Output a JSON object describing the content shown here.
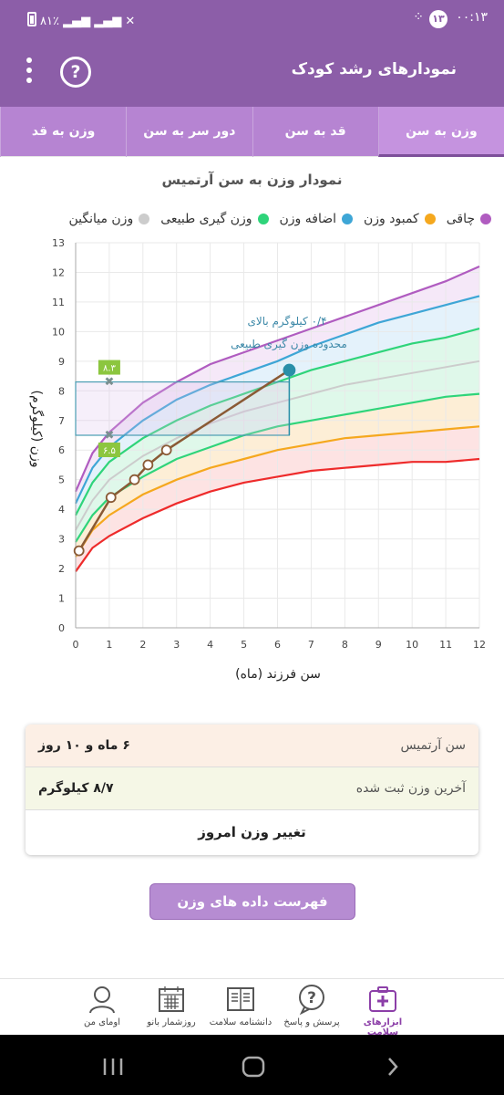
{
  "status_bar": {
    "time": "۰۰:۱۳",
    "notification_count": "۱۳",
    "battery": "۸۱٪"
  },
  "header": {
    "title": "نمودارهای رشد کودک"
  },
  "tabs": [
    {
      "label": "وزن به سن",
      "active": true
    },
    {
      "label": "قد به سن",
      "active": false
    },
    {
      "label": "دور سر به سن",
      "active": false
    },
    {
      "label": "وزن به قد",
      "active": false
    }
  ],
  "chart_title": "نمودار وزن به سن آرتمیس",
  "legend": [
    {
      "label": "چاقی",
      "color": "#b05cc0"
    },
    {
      "label": "کمبود وزن",
      "color": "#f5a81e"
    },
    {
      "label": "اضافه وزن",
      "color": "#3ea6d6"
    },
    {
      "label": "وزن گیری طبیعی",
      "color": "#2fd47a"
    },
    {
      "label": "وزن میانگین",
      "color": "#cccccc"
    }
  ],
  "chart_data": {
    "type": "line",
    "xlabel": "سن فرزند (ماه)",
    "ylabel": "وزن (کیلوگرم)",
    "xlim": [
      0,
      12
    ],
    "ylim": [
      0,
      13
    ],
    "x_ticks": [
      0,
      1,
      2,
      3,
      4,
      5,
      6,
      7,
      8,
      9,
      10,
      11,
      12
    ],
    "y_ticks": [
      0,
      1,
      2,
      3,
      4,
      5,
      6,
      7,
      8,
      9,
      10,
      11,
      12,
      13
    ],
    "ref_x": [
      0,
      0.5,
      1,
      2,
      3,
      4,
      5,
      6,
      7,
      8,
      9,
      10,
      11,
      12
    ],
    "reference_curves": [
      {
        "name": "obese",
        "color": "#b05cc0",
        "values": [
          4.6,
          5.9,
          6.6,
          7.6,
          8.3,
          8.9,
          9.3,
          9.7,
          10.1,
          10.5,
          10.9,
          11.3,
          11.7,
          12.2
        ]
      },
      {
        "name": "overweight",
        "color": "#3ea6d6",
        "values": [
          4.2,
          5.4,
          6.1,
          7.0,
          7.7,
          8.2,
          8.6,
          9.0,
          9.5,
          9.9,
          10.3,
          10.6,
          10.9,
          11.2
        ]
      },
      {
        "name": "normal-upper",
        "color": "#2fd47a",
        "values": [
          3.8,
          4.9,
          5.6,
          6.4,
          7.0,
          7.5,
          7.9,
          8.3,
          8.7,
          9.0,
          9.3,
          9.6,
          9.8,
          10.1
        ]
      },
      {
        "name": "average",
        "color": "#cccccc",
        "values": [
          3.3,
          4.3,
          5.0,
          5.8,
          6.4,
          6.9,
          7.3,
          7.6,
          7.9,
          8.2,
          8.4,
          8.6,
          8.8,
          9.0
        ]
      },
      {
        "name": "normal-lower",
        "color": "#2fd47a",
        "values": [
          2.9,
          3.8,
          4.4,
          5.1,
          5.7,
          6.1,
          6.5,
          6.8,
          7.0,
          7.2,
          7.4,
          7.6,
          7.8,
          7.9
        ]
      },
      {
        "name": "underweight",
        "color": "#f5a81e",
        "values": [
          2.4,
          3.3,
          3.8,
          4.5,
          5.0,
          5.4,
          5.7,
          6.0,
          6.2,
          6.4,
          6.5,
          6.6,
          6.7,
          6.8
        ]
      },
      {
        "name": "severe",
        "color": "#ee2b2b",
        "values": [
          1.9,
          2.7,
          3.1,
          3.7,
          4.2,
          4.6,
          4.9,
          5.1,
          5.3,
          5.4,
          5.5,
          5.6,
          5.6,
          5.7
        ]
      }
    ],
    "series": [
      {
        "color": "#8a5a35",
        "x": [
          0.1,
          1.05,
          1.75,
          2.15,
          2.7,
          6.35
        ],
        "values": [
          2.6,
          4.4,
          5.0,
          5.5,
          6.0,
          8.7
        ]
      }
    ],
    "range_box": {
      "x1": 0,
      "x2": 6.35,
      "y_low": 6.5,
      "y_high": 8.3
    },
    "range_markers": [
      {
        "x": 1,
        "y": 8.3,
        "label": "۸.۳"
      },
      {
        "x": 1,
        "y": 6.5,
        "label": "۶.۵"
      }
    ],
    "annotation": {
      "line1": "۰/۴ کیلوگرم بالای",
      "line2": "محدوده وزن گیری طبیعی",
      "color": "#3d89a8"
    }
  },
  "info_card": {
    "age_label": "سن آرتمیس",
    "age_value": "۶ ماه و ۱۰ روز",
    "weight_label": "آخرین وزن ثبت شده",
    "weight_value": "۸/۷ کیلوگرم",
    "change_weight_label": "تغییر وزن امروز"
  },
  "list_button_label": "فهرست داده های وزن آرتمیس",
  "bottom_nav": [
    {
      "label": "ابزارهای سلامت",
      "icon": "first-aid-kit-icon",
      "active": true
    },
    {
      "label": "پرسش و پاسخ",
      "icon": "question-bubble-icon",
      "active": false
    },
    {
      "label": "دانشنامه سلامت",
      "icon": "book-icon",
      "active": false
    },
    {
      "label": "روزشمار بانو",
      "icon": "calendar-icon",
      "active": false
    },
    {
      "label": "اومای من",
      "icon": "avatar-icon",
      "active": false
    }
  ]
}
